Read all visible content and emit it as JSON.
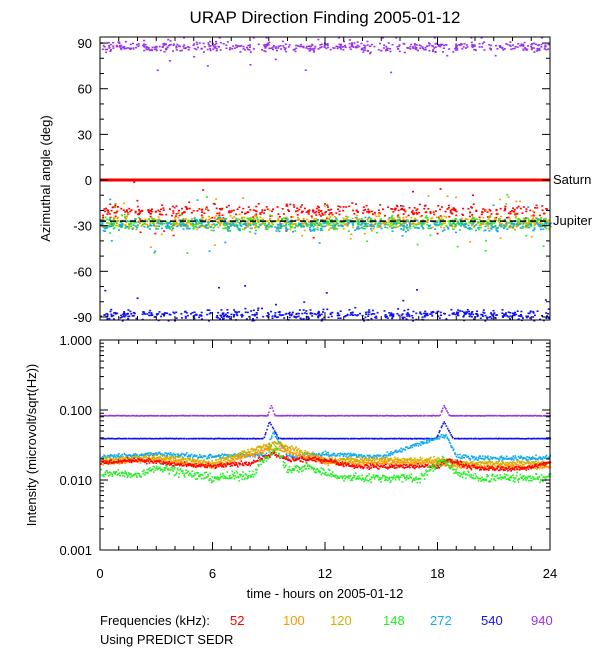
{
  "chart_data": [
    {
      "type": "scatter",
      "title": "URAP Direction Finding  2005-01-12",
      "ylabel": "Azimuthal angle (deg)",
      "xlim": [
        0,
        24
      ],
      "ylim": [
        -92,
        94
      ],
      "yticks": [
        90,
        60,
        30,
        0,
        -30,
        -60,
        -90
      ],
      "reference_lines": [
        {
          "name": "Saturn",
          "y": 0,
          "color": "#ff0000"
        },
        {
          "name": "Jupiter",
          "y": -27,
          "color": "#000000",
          "style": "dashed"
        }
      ],
      "series": [
        {
          "name": "52",
          "color": "#ff0000",
          "band_center": -20,
          "band_width": 6
        },
        {
          "name": "100",
          "color": "#ff9900",
          "band_center": -27,
          "band_width": 6
        },
        {
          "name": "120",
          "color": "#d4b000",
          "band_center": -28,
          "band_width": 6
        },
        {
          "name": "148",
          "color": "#22ee22",
          "band_center": -28,
          "band_width": 7
        },
        {
          "name": "272",
          "color": "#11aaee",
          "band_center": -29,
          "band_width": 6
        },
        {
          "name": "540",
          "color": "#1111ee",
          "band_center": -88,
          "band_width": 5
        },
        {
          "name": "940",
          "color": "#9933ee",
          "band_center": 88,
          "band_width": 5
        }
      ]
    },
    {
      "type": "line",
      "ylabel": "Intensity (microvolt/sqrt(Hz))",
      "xlabel": "time - hours on 2005-01-12",
      "xlim": [
        0,
        24
      ],
      "xticks": [
        0,
        6,
        12,
        18,
        24
      ],
      "ylim": [
        0.001,
        1.0
      ],
      "yscale": "log",
      "yticks": [
        1.0,
        0.1,
        0.01,
        0.001
      ],
      "ytick_labels": [
        "1.000",
        "0.100",
        "0.010",
        "0.001"
      ],
      "series": [
        {
          "name": "940",
          "color": "#9933ee",
          "x": [
            0,
            8.9,
            9.1,
            9.3,
            18.1,
            18.3,
            18.6,
            24
          ],
          "y": [
            0.085,
            0.085,
            0.12,
            0.085,
            0.085,
            0.12,
            0.085,
            0.085
          ]
        },
        {
          "name": "540",
          "color": "#1111ee",
          "x": [
            0,
            8.7,
            9.0,
            9.5,
            17.9,
            18.3,
            18.8,
            24
          ],
          "y": [
            0.04,
            0.04,
            0.07,
            0.04,
            0.04,
            0.07,
            0.04,
            0.04
          ]
        },
        {
          "name": "272",
          "color": "#11aaee",
          "x": [
            0,
            3,
            6,
            8.8,
            9.2,
            10,
            12,
            15,
            18.4,
            19,
            21,
            24
          ],
          "y": [
            0.022,
            0.024,
            0.022,
            0.024,
            0.05,
            0.022,
            0.024,
            0.022,
            0.045,
            0.022,
            0.021,
            0.021
          ]
        },
        {
          "name": "120",
          "color": "#d4b000",
          "x": [
            0,
            3,
            6,
            9.3,
            12,
            14,
            18,
            19,
            22,
            24
          ],
          "y": [
            0.02,
            0.022,
            0.018,
            0.035,
            0.02,
            0.02,
            0.02,
            0.018,
            0.018,
            0.018
          ]
        },
        {
          "name": "100",
          "color": "#ff9900",
          "x": [
            0,
            3,
            6,
            9.3,
            12,
            14,
            18,
            19,
            22,
            24
          ],
          "y": [
            0.018,
            0.02,
            0.016,
            0.03,
            0.018,
            0.018,
            0.018,
            0.016,
            0.016,
            0.016
          ]
        },
        {
          "name": "52",
          "color": "#ff0000",
          "x": [
            0,
            2,
            4,
            6,
            8,
            9.2,
            10,
            12,
            13.5,
            15,
            18,
            18.5,
            20,
            22.5,
            24
          ],
          "y": [
            0.018,
            0.02,
            0.017,
            0.016,
            0.018,
            0.024,
            0.02,
            0.02,
            0.016,
            0.016,
            0.016,
            0.02,
            0.015,
            0.015,
            0.018
          ]
        },
        {
          "name": "148",
          "color": "#22ee22",
          "x": [
            0,
            2,
            3,
            4,
            5,
            6,
            8,
            9.3,
            10,
            11,
            12,
            13,
            15,
            17,
            18.3,
            19,
            20,
            22,
            24
          ],
          "y": [
            0.013,
            0.012,
            0.016,
            0.014,
            0.012,
            0.011,
            0.012,
            0.03,
            0.014,
            0.016,
            0.013,
            0.011,
            0.011,
            0.011,
            0.02,
            0.013,
            0.011,
            0.011,
            0.011
          ]
        }
      ]
    }
  ],
  "legend": {
    "label": "Frequencies (kHz):",
    "entries": [
      {
        "text": "52",
        "color": "#ff0000"
      },
      {
        "text": "100",
        "color": "#ff9900"
      },
      {
        "text": "120",
        "color": "#d4b000"
      },
      {
        "text": "148",
        "color": "#22ee22"
      },
      {
        "text": "272",
        "color": "#11aaee"
      },
      {
        "text": "540",
        "color": "#1111ee"
      },
      {
        "text": "940",
        "color": "#9933ee"
      }
    ]
  },
  "note": "Using PREDICT SEDR"
}
